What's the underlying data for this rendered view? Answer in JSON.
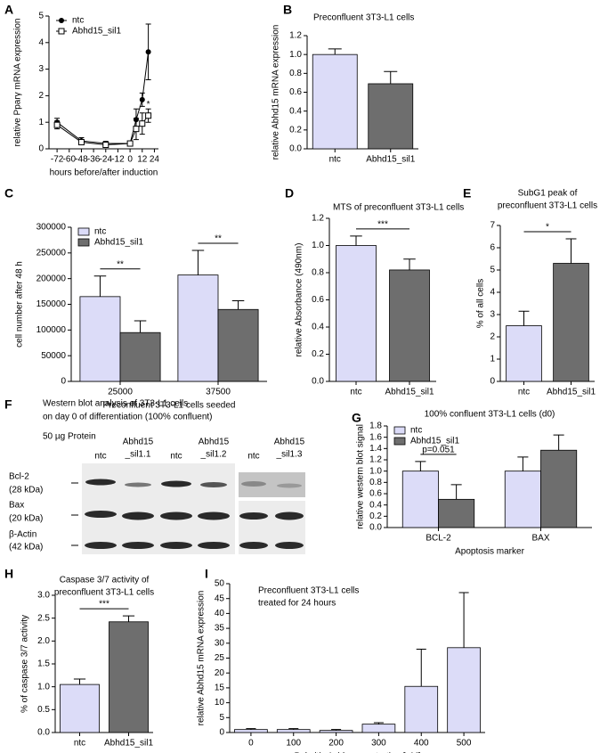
{
  "chart_data": [
    {
      "panel": "A",
      "type": "line",
      "xlabel": "hours before/after induction",
      "ylabel": "relative Pparγ mRNA expression",
      "x": [
        -72,
        -48,
        -24,
        0,
        6,
        12,
        18
      ],
      "series": [
        {
          "name": "ntc",
          "color": "#000000",
          "marker": "circle",
          "values": [
            1.0,
            0.3,
            0.2,
            0.2,
            1.1,
            1.85,
            3.65
          ],
          "errors": [
            0.15,
            0.12,
            0.08,
            0.05,
            0.4,
            0.25,
            1.05
          ]
        },
        {
          "name": "Abhd15_sil1",
          "color": "#000000",
          "marker": "square",
          "values": [
            0.9,
            0.25,
            0.15,
            0.2,
            0.75,
            0.95,
            1.25
          ],
          "errors": [
            0.15,
            0.1,
            0.08,
            0.05,
            0.4,
            0.4,
            0.25
          ]
        }
      ],
      "xlim": [
        -80,
        28
      ],
      "xticks": [
        -72,
        -60,
        -48,
        -36,
        -24,
        -12,
        0,
        12,
        24
      ],
      "ylim": [
        0,
        5
      ],
      "yticks": [
        0,
        1,
        2,
        3,
        4,
        5
      ],
      "legend": "upper left",
      "annotations": [
        "*"
      ]
    },
    {
      "panel": "B",
      "type": "bar",
      "title": "Preconfluent 3T3-L1 cells",
      "ylabel": "relative Abhd15 mRNA expression",
      "categories": [
        "ntc",
        "Abhd15_sil1"
      ],
      "values": [
        1.0,
        0.69
      ],
      "errors": [
        0.06,
        0.13
      ],
      "colors": [
        "#dcdcf8",
        "#6e6e6e"
      ],
      "ylim": [
        0,
        1.2
      ],
      "yticks": [
        {
          "value": 0,
          "label": "0.0"
        },
        0.2,
        0.4,
        0.6,
        0.8,
        {
          "value": 1,
          "label": "1.0"
        },
        1.2
      ]
    },
    {
      "panel": "C",
      "type": "bar",
      "xlabel": "Preconfluent 3T3-L1 cells seeded",
      "ylabel": "cell number after 48 h",
      "categories": [
        "25000",
        "37500"
      ],
      "series": [
        {
          "name": "ntc",
          "color": "#dcdcf8",
          "values": [
            165000,
            207000
          ],
          "errors": [
            40000,
            48000
          ]
        },
        {
          "name": "Abhd15_sil1",
          "color": "#6e6e6e",
          "values": [
            95000,
            140000
          ],
          "errors": [
            23000,
            17000
          ]
        }
      ],
      "ylim": [
        0,
        300000
      ],
      "yticks": [
        0,
        50000,
        100000,
        150000,
        200000,
        250000,
        300000
      ],
      "legend": "upper left",
      "annotations": [
        "**",
        "**"
      ]
    },
    {
      "panel": "D",
      "type": "bar",
      "title": "MTS of preconfluent 3T3-L1 cells",
      "ylabel": "relative Absorbance (490nm)",
      "categories": [
        "ntc",
        "Abhd15_sil1"
      ],
      "values": [
        1.0,
        0.82
      ],
      "errors": [
        0.07,
        0.08
      ],
      "colors": [
        "#dcdcf8",
        "#6e6e6e"
      ],
      "ylim": [
        0,
        1.2
      ],
      "yticks": [
        {
          "value": 0,
          "label": "0.0"
        },
        0.2,
        0.4,
        0.6,
        0.8,
        {
          "value": 1,
          "label": "1.0"
        },
        1.2
      ],
      "annotations": [
        "***"
      ]
    },
    {
      "panel": "E",
      "type": "bar",
      "title": [
        "SubG1 peak of",
        "preconfluent 3T3-L1 cells"
      ],
      "ylabel": "% of all cells",
      "categories": [
        "ntc",
        "Abhd15_sil1"
      ],
      "values": [
        2.5,
        5.3
      ],
      "errors": [
        0.65,
        1.1
      ],
      "colors": [
        "#dcdcf8",
        "#6e6e6e"
      ],
      "ylim": [
        0,
        7
      ],
      "yticks": [
        0,
        1,
        2,
        3,
        4,
        5,
        6,
        7
      ],
      "annotations": [
        "*"
      ]
    },
    {
      "panel": "G",
      "type": "bar",
      "title": "100% confluent 3T3-L1 cells (d0)",
      "xlabel": "Apoptosis marker",
      "ylabel": "relative western blot signal",
      "categories": [
        "BCL-2",
        "BAX"
      ],
      "series": [
        {
          "name": "ntc",
          "color": "#dcdcf8",
          "values": [
            1.0,
            1.0
          ],
          "errors": [
            0.17,
            0.25
          ]
        },
        {
          "name": "Abhd15_sil1",
          "color": "#6e6e6e",
          "values": [
            0.5,
            1.37
          ],
          "errors": [
            0.26,
            0.27
          ]
        }
      ],
      "ylim": [
        0,
        1.8
      ],
      "yticks": [
        {
          "value": 0,
          "label": "0.0"
        },
        0.2,
        0.4,
        0.6,
        0.8,
        {
          "value": 1,
          "label": "1.0"
        },
        1.2,
        1.4,
        1.6,
        1.8
      ],
      "legend": "upper left",
      "annotations": [
        "p=0.051"
      ]
    },
    {
      "panel": "H",
      "type": "bar",
      "title": [
        "Caspase 3/7 activity of",
        "preconfluent 3T3-L1 cells"
      ],
      "ylabel": "% of caspase 3/7 activity",
      "categories": [
        "ntc",
        "Abhd15_sil1"
      ],
      "values": [
        1.05,
        2.42
      ],
      "errors": [
        0.12,
        0.13
      ],
      "colors": [
        "#dcdcf8",
        "#6e6e6e"
      ],
      "ylim": [
        0,
        3
      ],
      "yticks": [
        {
          "value": 0,
          "label": "0.0"
        },
        0.5,
        {
          "value": 1,
          "label": "1.0"
        },
        1.5,
        {
          "value": 2,
          "label": "2.0"
        },
        2.5,
        {
          "value": 3,
          "label": "3.0"
        }
      ],
      "annotations": [
        "***"
      ]
    },
    {
      "panel": "I",
      "type": "bar",
      "title": [
        "Preconfluent 3T3-L1 cells",
        "treated for 24 hours"
      ],
      "xlabel": "Palmitic Acid concentration [µM]",
      "ylabel": "relative Abhd15 mRNA expression",
      "categories": [
        "0",
        "100",
        "200",
        "300",
        "400",
        "500"
      ],
      "values": [
        1,
        1,
        0.7,
        2.8,
        15.5,
        28.5
      ],
      "errors": [
        0.3,
        0.3,
        0.3,
        0.5,
        12.5,
        18.5
      ],
      "color": "#dcdcf8",
      "ylim": [
        0,
        50
      ],
      "yticks": [
        0,
        5,
        10,
        15,
        20,
        25,
        30,
        35,
        40,
        45,
        50
      ]
    }
  ],
  "western_blot": {
    "panel": "F",
    "title": [
      "Western blot analysis of 3T3-L1 cells",
      "on  day 0 of differentiation (100% confluent)"
    ],
    "protein": "50 µg Protein",
    "lanes": [
      "ntc",
      [
        "Abhd15",
        "_sil1.1"
      ],
      "ntc",
      [
        "Abhd15",
        "_sil1.2"
      ],
      "ntc",
      [
        "Abhd15",
        "_sil1.3"
      ]
    ],
    "rows": [
      [
        "Bcl-2",
        "(28 kDa)"
      ],
      [
        "Bax",
        "(20 kDa)"
      ],
      [
        "β-Actin",
        "(42 kDa)"
      ]
    ]
  }
}
